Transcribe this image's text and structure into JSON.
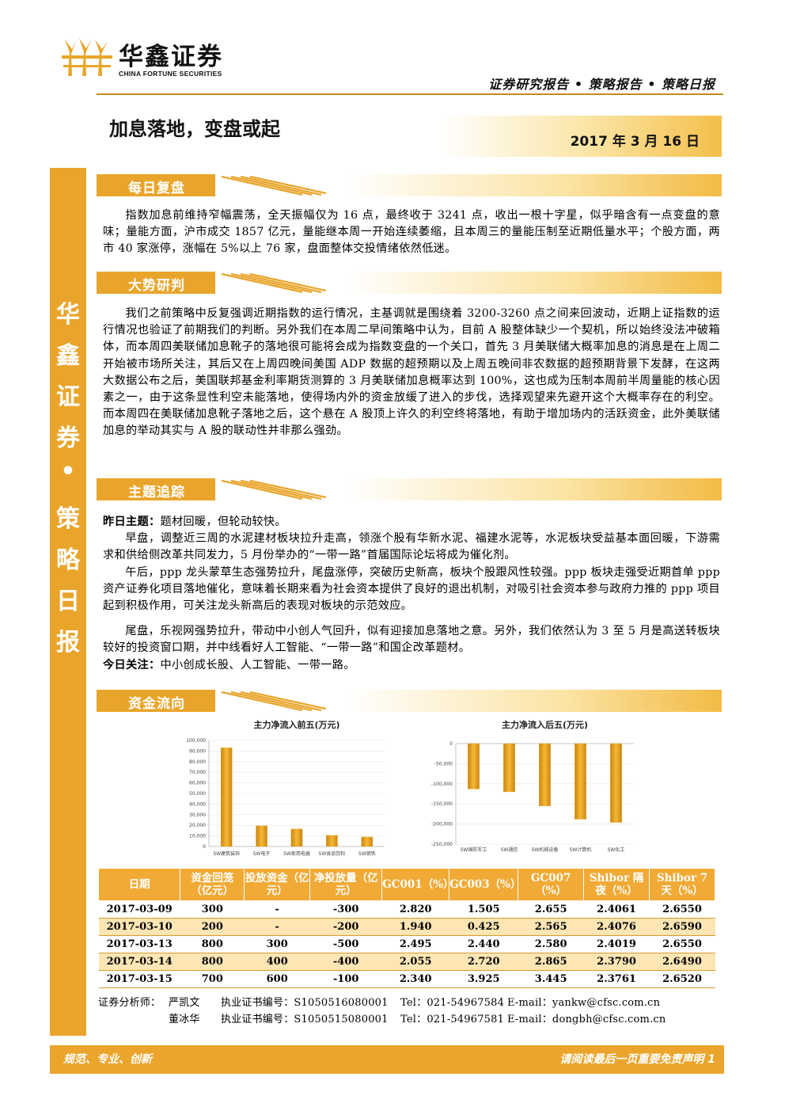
{
  "header": {
    "logo_cn": "华鑫证券",
    "logo_en": "CHINA FORTUNE SECURITIES",
    "report_type": "证券研究报告 • 策略报告 • 策略日报"
  },
  "title": "加息落地，变盘或起",
  "date": "2017 年 3 月 16 日",
  "sidebar_chars": [
    "华",
    "鑫",
    "证",
    "券",
    "•",
    "策",
    "略",
    "日",
    "报"
  ],
  "colors": {
    "accent": "#e9a52b",
    "bar": "#e8a21c",
    "table_header": "#f0aa35",
    "table_alt_row": "#fde6b4"
  },
  "sections": {
    "daily_review": {
      "label": "每日复盘",
      "text": "指数加息前维持窄幅震荡，全天振幅仅为 16 点，最终收于 3241 点，收出一根十字星，似乎暗含有一点变盘的意味；量能方面，沪市成交 1857 亿元，量能继本周一开始连续萎缩，且本周三的量能压制至近期低量水平；个股方面，两市 40 家涨停，涨幅在 5%以上 76 家，盘面整体交投情绪依然低迷。"
    },
    "trend": {
      "label": "大势研判",
      "text": "我们之前策略中反复强调近期指数的运行情况，主基调就是围绕着 3200-3260 点之间来回波动，近期上证指数的运行情况也验证了前期我们的判断。另外我们在本周二早间策略中认为，目前 A 股整体缺少一个契机，所以始终没法冲破箱体，而本周四美联储加息靴子的落地很可能将会成为指数变盘的一个关口，首先 3 月美联储大概率加息的消息是在上周二开始被市场所关注，其后又在上周四晚间美国 ADP 数据的超预期以及上周五晚间非农数据的超预期背景下发酵，在这两大数据公布之后，美国联邦基金利率期货测算的 3 月美联储加息概率达到 100%，这也成为压制本周前半周量能的核心因素之一，由于这条显性利空未能落地，使得场内外的资金放缓了进入的步伐，选择观望来先避开这个大概率存在的利空。而本周四在美联储加息靴子落地之后，这个悬在 A 股顶上许久的利空终将落地，有助于增加场内的活跃资金，此外美联储加息的举动其实与 A 股的联动性并非那么强劲。"
    },
    "theme": {
      "label": "主题追踪",
      "yesterday_label": "昨日主题：",
      "yesterday_text": "题材回暖，但轮动较快。",
      "p1": "早盘，调整近三周的水泥建材板块拉升走高，领涨个股有华新水泥、福建水泥等，水泥板块受益基本面回暖，下游需求和供给侧改革共同发力，5 月份举办的“一带一路”首届国际论坛将成为催化剂。",
      "p2": "午后，ppp 龙头蒙草生态强势拉升，尾盘涨停，突破历史新高，板块个股跟风性较强。ppp 板块走强受近期首单 ppp 资产证券化项目落地催化，意味着长期来看为社会资本提供了良好的退出机制，对吸引社会资本参与政府力推的 ppp 项目起到积极作用，可关注龙头新高后的表现对板块的示范效应。",
      "p3": "尾盘，乐视网强势拉升，带动中小创人气回升，似有迎接加息落地之意。另外，我们依然认为 3 至 5 月是高送转板块较好的投资窗口期，并中线看好人工智能、“一带一路”和国企改革题材。",
      "today_label": "今日关注：",
      "today_text": "中小创成长股、人工智能、一带一路。"
    },
    "fund_flow": {
      "label": "资金流向"
    }
  },
  "chart_data": [
    {
      "type": "bar",
      "title": "主力净流入前五(万元)",
      "categories": [
        "SW建筑装饰",
        "SW电子",
        "SW家用电器",
        "SW食品饮料",
        "SW钢铁"
      ],
      "values": [
        93000,
        19500,
        16500,
        10500,
        9000
      ],
      "ylim": [
        0,
        100000
      ],
      "yticks": [
        0,
        10000,
        20000,
        30000,
        40000,
        50000,
        60000,
        70000,
        80000,
        90000,
        100000
      ],
      "ytick_labels": [
        "0",
        "10,000",
        "20,000",
        "30,000",
        "40,000",
        "50,000",
        "60,000",
        "70,000",
        "80,000",
        "90,000",
        "100,000"
      ]
    },
    {
      "type": "bar",
      "title": "主力净流入后五(万元)",
      "categories": [
        "SW国防军工",
        "SW通信",
        "SW机械设备",
        "SW计算机",
        "SW化工"
      ],
      "values": [
        -113000,
        -120000,
        -155000,
        -188000,
        -196000
      ],
      "ylim": [
        -250000,
        0
      ],
      "yticks": [
        0,
        -50000,
        -100000,
        -150000,
        -200000,
        -250000
      ],
      "ytick_labels": [
        "0",
        "-50,000",
        "-100,000",
        "-150,000",
        "-200,000",
        "-250,000"
      ]
    }
  ],
  "table": {
    "headers": [
      "日期",
      "资金回笼（亿元）",
      "投放资金（亿元）",
      "净投放量（亿元）",
      "GC001（%）",
      "GC003（%）",
      "GC007（%）",
      "Shibor 隔夜（%）",
      "Shibor 7 天（%）"
    ],
    "rows": [
      [
        "2017-03-09",
        "300",
        "-",
        "-300",
        "2.820",
        "1.505",
        "2.655",
        "2.4061",
        "2.6550"
      ],
      [
        "2017-03-10",
        "200",
        "-",
        "-200",
        "1.940",
        "0.425",
        "2.565",
        "2.4076",
        "2.6590"
      ],
      [
        "2017-03-13",
        "800",
        "300",
        "-500",
        "2.495",
        "2.440",
        "2.580",
        "2.4019",
        "2.6550"
      ],
      [
        "2017-03-14",
        "800",
        "400",
        "-400",
        "2.055",
        "2.720",
        "2.865",
        "2.3790",
        "2.6490"
      ],
      [
        "2017-03-15",
        "700",
        "600",
        "-100",
        "2.340",
        "3.925",
        "3.445",
        "2.3761",
        "2.6520"
      ]
    ]
  },
  "analysts": {
    "label": "证券分析师：",
    "list": [
      {
        "name": "严凯文",
        "cert": "执业证书编号：S1050516080001",
        "tel": "Tel：021-54967584",
        "email": "E-mail：yankw@cfsc.com.cn"
      },
      {
        "name": "董冰华",
        "cert": "执业证书编号：S1050515080001",
        "tel": "Tel：021-54967581",
        "email": "E-mail：dongbh@cfsc.com.cn"
      }
    ]
  },
  "footer": {
    "left": "规范、专业、创新",
    "right": "请阅读最后一页重要免责声明 1"
  }
}
